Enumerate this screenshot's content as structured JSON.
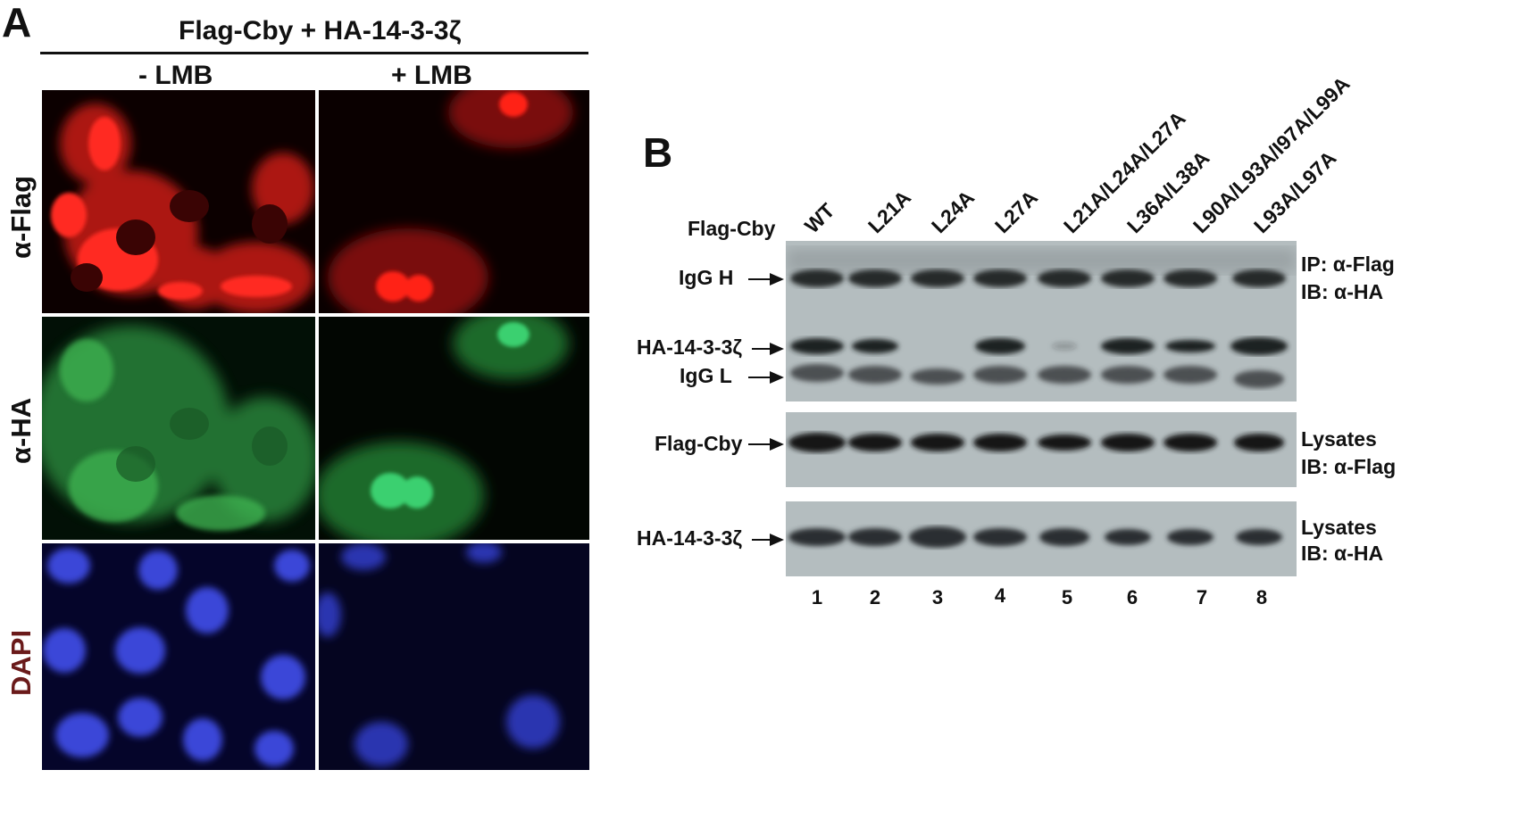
{
  "panel_a": {
    "letter": "A",
    "title": "Flag-Cby + HA-14-3-3ζ",
    "columns": [
      "- LMB",
      "+ LMB"
    ],
    "rows": [
      "α-Flag",
      "α-HA",
      "DAPI"
    ],
    "colors": {
      "flag": "#e0201c",
      "ha": "#2aa84a",
      "dapi": "#3a46d8",
      "dapi_label": "#6a1a1a"
    }
  },
  "panel_b": {
    "letter": "B",
    "construct_label": "Flag-Cby",
    "lanes": [
      "WT",
      "L21A",
      "L24A",
      "L27A",
      "L21A/L24A/L27A",
      "L36A/L38A",
      "L90A/L93A/I97A/L99A",
      "L93A/L97A"
    ],
    "lane_numbers": [
      "1",
      "2",
      "3",
      "4",
      "5",
      "6",
      "7",
      "8"
    ],
    "left_labels": {
      "igg_h": "IgG H",
      "ha_1433": "HA-14-3-3ζ",
      "igg_l": "IgG L",
      "flag_cby": "Flag-Cby",
      "ha_1433_lys": "HA-14-3-3ζ"
    },
    "right_labels": {
      "ip_line1": "IP: α-Flag",
      "ip_line2": "IB: α-HA",
      "lys1_line1": "Lysates",
      "lys1_line2": "IB: α-Flag",
      "lys2_line1": "Lysates",
      "lys2_line2": "IB: α-HA"
    },
    "ha_1433_band_present": [
      true,
      true,
      false,
      true,
      false,
      true,
      true,
      true
    ]
  }
}
